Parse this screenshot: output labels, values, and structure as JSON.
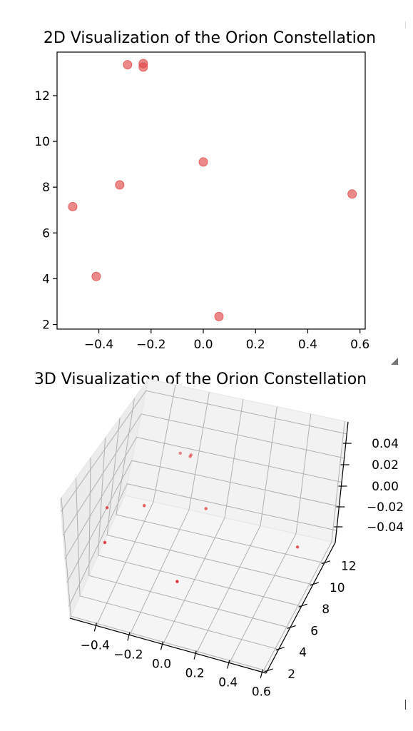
{
  "chart_data": [
    {
      "type": "scatter",
      "title": "2D Visualization of the Orion Constellation",
      "xlabel": "",
      "ylabel": "",
      "xlim": [
        -0.56,
        0.62
      ],
      "ylim": [
        1.8,
        13.9
      ],
      "xticks": [
        -0.4,
        -0.2,
        0.0,
        0.2,
        0.4,
        0.6
      ],
      "xtick_labels": [
        "−0.4",
        "−0.2",
        "0.0",
        "0.2",
        "0.4",
        "0.6"
      ],
      "yticks": [
        2,
        4,
        6,
        8,
        10,
        12
      ],
      "ytick_labels": [
        "2",
        "4",
        "6",
        "8",
        "10",
        "12"
      ],
      "grid": false,
      "point_color": "#e04848",
      "series": [
        {
          "x": [
            -0.41,
            0.06,
            0.57,
            -0.32,
            -0.5,
            -0.29,
            -0.23,
            -0.23,
            0.0
          ],
          "y": [
            4.1,
            2.35,
            7.7,
            8.1,
            7.15,
            13.35,
            13.4,
            13.25,
            9.1
          ]
        }
      ]
    },
    {
      "type": "scatter",
      "subtype": "3d",
      "title": "3D Visualization of the Orion Constellation",
      "xlim": [
        -0.56,
        0.62
      ],
      "ylim": [
        1.8,
        13.9
      ],
      "zlim": [
        -0.055,
        0.055
      ],
      "xtick_labels": [
        "−0.4",
        "−0.2",
        "0.0",
        "0.2",
        "0.4",
        "0.6"
      ],
      "ytick_labels": [
        "2",
        "4",
        "6",
        "8",
        "10",
        "12"
      ],
      "ztick_labels": [
        "0.04",
        "0.02",
        "0.00",
        "−0.02",
        "−0.04"
      ],
      "grid": true,
      "point_color": "#e03030",
      "series": [
        {
          "x": [
            -0.41,
            0.06,
            0.57,
            -0.32,
            -0.5,
            -0.29,
            -0.23,
            -0.23,
            0.0
          ],
          "y": [
            4.1,
            2.35,
            7.7,
            8.1,
            7.15,
            13.35,
            13.4,
            13.25,
            9.1
          ],
          "z": [
            0,
            0,
            0,
            0,
            0,
            0,
            0,
            0,
            0
          ]
        }
      ]
    }
  ]
}
